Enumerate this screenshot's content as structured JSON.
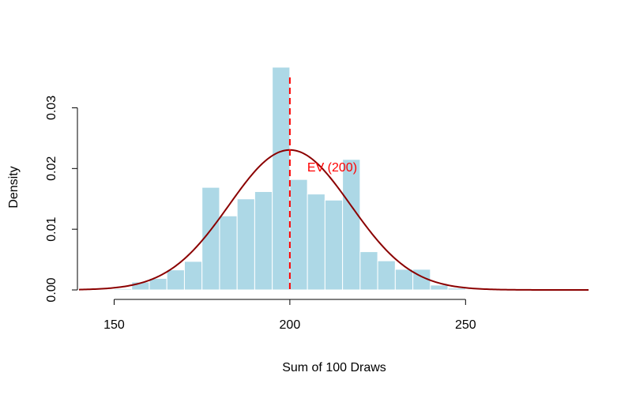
{
  "chart_data": {
    "type": "bar",
    "title": "",
    "xlabel": "Sum of 100 Draws",
    "ylabel": "Density",
    "xlim": [
      140,
      285
    ],
    "ylim": [
      0,
      0.038
    ],
    "x_ticks": [
      150,
      200,
      250
    ],
    "y_ticks": [
      0.0,
      0.01,
      0.02,
      0.03
    ],
    "x_tick_labels": [
      "150",
      "200",
      "250"
    ],
    "y_tick_labels": [
      "0.00",
      "0.01",
      "0.02",
      "0.03"
    ],
    "grid": false,
    "bins": {
      "edges": [
        150,
        155,
        160,
        165,
        170,
        175,
        180,
        185,
        190,
        195,
        200,
        205,
        210,
        215,
        220,
        225,
        230,
        235,
        240,
        245,
        250
      ],
      "density": [
        0.0002,
        0.0013,
        0.0019,
        0.0033,
        0.0047,
        0.0169,
        0.0122,
        0.015,
        0.0162,
        0.0367,
        0.0182,
        0.0158,
        0.0148,
        0.0215,
        0.0063,
        0.0048,
        0.0034,
        0.0034,
        0.0008,
        0.0003
      ],
      "color": "#add8e6"
    },
    "density_curve": {
      "mean": 200,
      "sd": 17.3,
      "x_range": [
        140,
        285
      ],
      "color": "#8b0000"
    },
    "reference_line": {
      "x": 200,
      "color": "#ff0000",
      "label": "EV (200)"
    }
  }
}
